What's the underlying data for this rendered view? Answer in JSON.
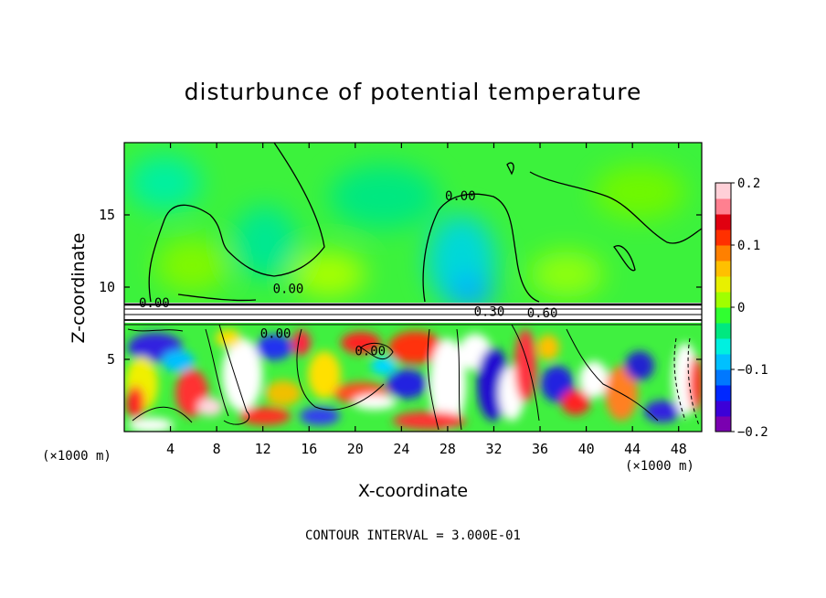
{
  "chart_data": {
    "type": "heatmap",
    "title": "disturbunce of potential temperature",
    "xlabel": "X-coordinate",
    "ylabel": "Z-coordinate",
    "x_unit_left": "(×1000 m)",
    "x_unit_right": "(×1000 m)",
    "xlim": [
      0,
      50
    ],
    "ylim": [
      0,
      20
    ],
    "x_ticks": [
      4,
      8,
      12,
      16,
      20,
      24,
      28,
      32,
      36,
      40,
      44,
      48
    ],
    "x_tick_labels": [
      "4",
      "8",
      "12",
      "16",
      "20",
      "24",
      "28",
      "32",
      "36",
      "40",
      "44",
      "48"
    ],
    "y_ticks": [
      5,
      10,
      15
    ],
    "y_tick_labels": [
      "5",
      "10",
      "15"
    ],
    "colorbar": {
      "range": [
        -0.2,
        0.2
      ],
      "tick_values": [
        0.2,
        0.1,
        0,
        -0.1,
        -0.2
      ],
      "tick_labels": [
        "0.2",
        "0.1",
        "0",
        "−0.1",
        "−0.2"
      ],
      "colors": [
        "#7a00b0",
        "#3c00d8",
        "#0028ff",
        "#0078ff",
        "#00c0ff",
        "#00f0e0",
        "#00e880",
        "#30ff30",
        "#a0ff00",
        "#e8f000",
        "#ffc000",
        "#ff8000",
        "#ff3000",
        "#e00010",
        "#ff8090",
        "#ffd0d8"
      ]
    },
    "contour_labels": [
      {
        "text": "0.00",
        "x": 2.6,
        "z": 8.6
      },
      {
        "text": "0.00",
        "x": 14.2,
        "z": 9.6
      },
      {
        "text": "0.00",
        "x": 29.1,
        "z": 16.0
      },
      {
        "text": "0.30",
        "x": 31.6,
        "z": 8.0
      },
      {
        "text": "0.60",
        "x": 36.2,
        "z": 7.9
      },
      {
        "text": "0.00",
        "x": 13.1,
        "z": 6.5
      },
      {
        "text": "0.00",
        "x": 21.3,
        "z": 5.3
      }
    ],
    "contour_interval_text": "CONTOUR INTERVAL = 3.000E-01",
    "inversion_layer_z": [
      7.6,
      8.9
    ]
  }
}
